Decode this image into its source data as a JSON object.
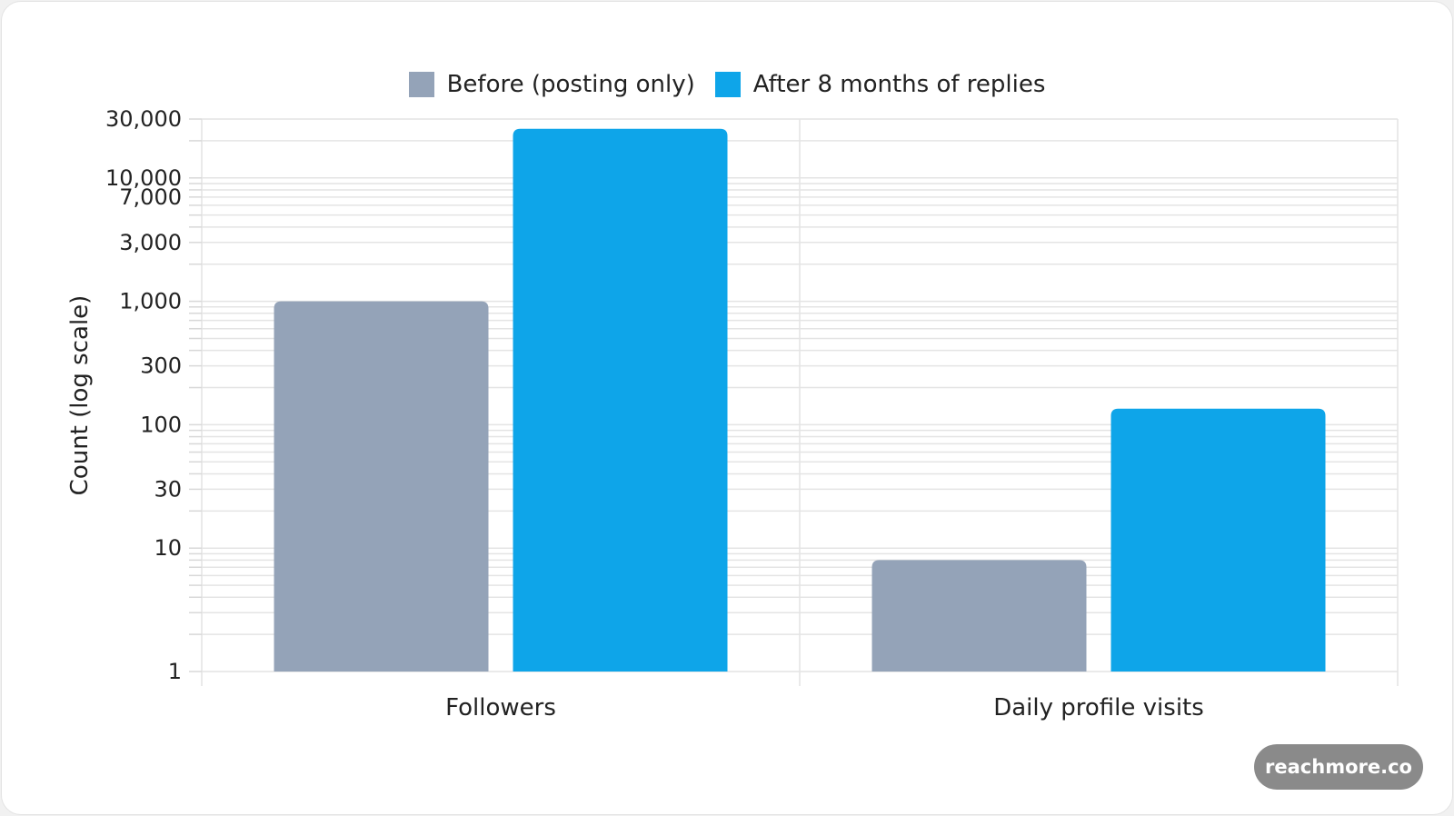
{
  "chart_data": {
    "type": "bar",
    "title": "",
    "xlabel": "",
    "ylabel": "Count (log scale)",
    "yscale": "log",
    "ylim": [
      1,
      30000
    ],
    "yticks": [
      1,
      10,
      30,
      100,
      300,
      1000,
      3000,
      7000,
      10000,
      30000
    ],
    "ytick_labels": [
      "1",
      "10",
      "30",
      "100",
      "300",
      "1,000",
      "3,000",
      "7,000",
      "10,000",
      "30,000"
    ],
    "categories": [
      "Followers",
      "Daily profile visits"
    ],
    "series": [
      {
        "name": "Before (posting only)",
        "values": [
          1000,
          8
        ],
        "color": "#94a3b8"
      },
      {
        "name": "After 8 months of replies",
        "values": [
          25000,
          135
        ],
        "color": "#0ea5e9"
      }
    ],
    "grid": true,
    "legend_position": "top-center"
  },
  "watermark": "reachmore.co"
}
